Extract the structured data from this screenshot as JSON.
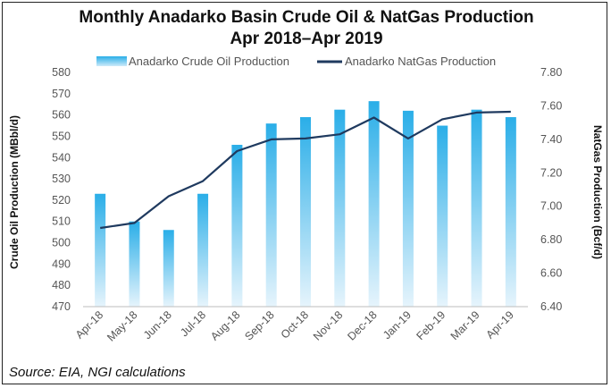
{
  "chart_data": {
    "type": "bar",
    "title": "Monthly Anadarko Basin Crude Oil & NatGas Production",
    "subtitle": "Apr 2018–Apr 2019",
    "categories": [
      "Apr-18",
      "May-18",
      "Jun-18",
      "Jul-18",
      "Aug-18",
      "Sep-18",
      "Oct-18",
      "Nov-18",
      "Dec-18",
      "Jan-19",
      "Feb-19",
      "Mar-19",
      "Apr-19"
    ],
    "series": [
      {
        "name": "Anadarko Crude Oil Production",
        "type": "bar",
        "axis": "left",
        "color": "#2aaee8",
        "values": [
          523,
          510,
          506,
          523,
          546,
          556,
          559,
          562.5,
          566.5,
          562,
          555,
          562.5,
          559
        ]
      },
      {
        "name": "Anadarko NatGas Production",
        "type": "line",
        "axis": "right",
        "color": "#1f3a5f",
        "values": [
          6.87,
          6.9,
          7.06,
          7.15,
          7.33,
          7.4,
          7.405,
          7.43,
          7.53,
          7.405,
          7.52,
          7.56,
          7.565
        ]
      }
    ],
    "ylabel": "Crude Oil Production (MBbl/d)",
    "ylabel_right": "NatGas Production (Bcf/d)",
    "ylim": [
      470,
      580
    ],
    "ylim_right": [
      6.4,
      7.8
    ],
    "yticks": [
      "470",
      "480",
      "490",
      "500",
      "510",
      "520",
      "530",
      "540",
      "550",
      "560",
      "570",
      "580"
    ],
    "yticks_right": [
      "6.40",
      "6.60",
      "6.80",
      "7.00",
      "7.20",
      "7.40",
      "7.60",
      "7.80"
    ],
    "legend_position": "top",
    "grid": false
  },
  "source": "Source: EIA, NGI calculations"
}
